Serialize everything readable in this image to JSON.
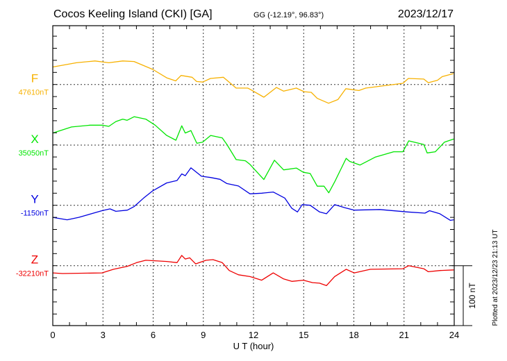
{
  "header": {
    "station": "Cocos Keeling Island (CKI)  [GA]",
    "coords": "GG (-12.19°,  96.83°)",
    "date": "2023/12/17"
  },
  "footer": {
    "plotted_at": "Plotted at 2023/12/23 21:13 UT",
    "scale_label": "100 nT"
  },
  "chart_data": {
    "type": "line",
    "title": "Cocos Keeling Island (CKI)  [GA]",
    "xlabel": "U T (hour)",
    "xlim": [
      0,
      24
    ],
    "x_ticks": [
      "0",
      "3",
      "6",
      "9",
      "12",
      "15",
      "18",
      "21",
      "24"
    ],
    "x_tick_values": [
      0,
      3,
      6,
      9,
      12,
      15,
      18,
      21,
      24
    ],
    "scale_bar_nT": 100,
    "grid": true,
    "series": [
      {
        "name": "F",
        "baseline_label": "47610nT",
        "baseline": 47610,
        "color": "#f7b100",
        "x": [
          0,
          1.41,
          2.52,
          3.35,
          4.18,
          4.86,
          5.98,
          6.81,
          7.35,
          7.67,
          8.33,
          8.6,
          8.96,
          9.43,
          10.2,
          10.96,
          11.66,
          11.8,
          12.62,
          13.37,
          13.8,
          14.56,
          15.03,
          15.45,
          15.81,
          16.49,
          17.05,
          17.52,
          18.3,
          18.71,
          20.93,
          21.26,
          22.18,
          22.45,
          23.0,
          23.28,
          23.96
        ],
        "y": [
          47639,
          47646,
          47649,
          47646,
          47649,
          47648,
          47635,
          47621,
          47616,
          47625,
          47622,
          47615,
          47614,
          47620,
          47622,
          47604,
          47604,
          47602,
          47589,
          47605,
          47599,
          47604,
          47598,
          47597,
          47587,
          47579,
          47585,
          47603,
          47600,
          47604,
          47612,
          47620,
          47619,
          47613,
          47617,
          47623,
          47628
        ]
      },
      {
        "name": "X",
        "baseline_label": "35050nT",
        "baseline": 35050,
        "color": "#00e600",
        "x": [
          0,
          1.12,
          2.24,
          2.94,
          3.35,
          3.77,
          4.18,
          4.44,
          4.87,
          5.56,
          6.12,
          6.81,
          7.36,
          7.71,
          7.92,
          8.26,
          8.61,
          8.96,
          9.44,
          10.13,
          10.41,
          10.96,
          11.52,
          11.79,
          12.62,
          13.25,
          13.8,
          14.56,
          14.98,
          15.39,
          15.81,
          16.22,
          16.5,
          16.85,
          17.54,
          17.75,
          18.37,
          19.27,
          20.38,
          20.93,
          21.28,
          22.18,
          22.38,
          22.87,
          23.42,
          23.97
        ],
        "y": [
          35070,
          35080,
          35083,
          35083,
          35081,
          35089,
          35093,
          35091,
          35097,
          35093,
          35083,
          35066,
          35058,
          35082,
          35070,
          35074,
          35053,
          35055,
          35066,
          35062,
          35051,
          35026,
          35024,
          35018,
          34993,
          35025,
          35009,
          35012,
          35005,
          35003,
          34982,
          34982,
          34971,
          34989,
          35028,
          35023,
          35017,
          35030,
          35039,
          35039,
          35057,
          35051,
          35037,
          35039,
          35055,
          35060
        ]
      },
      {
        "name": "Y",
        "baseline_label": "-1150nT",
        "baseline": -1150,
        "color": "#0000e0",
        "x": [
          0,
          0.86,
          1.55,
          2.94,
          3.42,
          3.77,
          4.46,
          4.87,
          5.43,
          5.98,
          6.81,
          7.43,
          7.71,
          7.92,
          8.26,
          8.89,
          9.44,
          10.0,
          10.41,
          11.1,
          11.79,
          12.49,
          13.18,
          13.87,
          14.29,
          14.63,
          14.91,
          15.39,
          15.95,
          16.36,
          16.85,
          17.47,
          18.02,
          19.55,
          21.21,
          22.25,
          22.52,
          23.14,
          23.77,
          23.97
        ],
        "y": [
          -1170,
          -1174,
          -1170,
          -1159,
          -1156,
          -1160,
          -1158,
          -1152,
          -1138,
          -1126,
          -1113,
          -1109,
          -1098,
          -1101,
          -1088,
          -1102,
          -1104,
          -1107,
          -1114,
          -1118,
          -1131,
          -1130,
          -1128,
          -1138,
          -1155,
          -1161,
          -1149,
          -1150,
          -1161,
          -1164,
          -1149,
          -1154,
          -1158,
          -1157,
          -1161,
          -1163,
          -1159,
          -1164,
          -1175,
          -1174
        ]
      },
      {
        "name": "Z",
        "baseline_label": "-32210nT",
        "baseline": -32210,
        "color": "#ee0000",
        "x": [
          0,
          0.58,
          2.94,
          3.63,
          4.46,
          5.01,
          5.56,
          6.81,
          7.43,
          7.71,
          7.92,
          8.19,
          8.54,
          9.16,
          9.58,
          10.13,
          10.55,
          11.1,
          11.79,
          12.49,
          13.18,
          13.8,
          14.29,
          14.98,
          15.53,
          15.95,
          16.36,
          16.85,
          17.54,
          18.02,
          18.99,
          20.93,
          21.28,
          22.18,
          22.45,
          23.14,
          23.97
        ],
        "y": [
          -32222,
          -32223,
          -32222,
          -32216,
          -32211,
          -32205,
          -32201,
          -32203,
          -32205,
          -32193,
          -32199,
          -32197,
          -32207,
          -32201,
          -32200,
          -32205,
          -32218,
          -32225,
          -32228,
          -32234,
          -32222,
          -32232,
          -32236,
          -32234,
          -32238,
          -32239,
          -32243,
          -32228,
          -32216,
          -32222,
          -32216,
          -32215,
          -32210,
          -32215,
          -32220,
          -32218,
          -32217
        ]
      }
    ]
  }
}
